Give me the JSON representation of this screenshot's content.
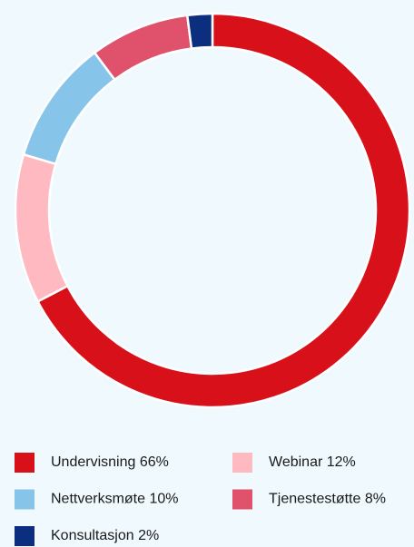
{
  "chart_data": {
    "type": "donut",
    "categories": [
      "Undervisning",
      "Webinar",
      "Nettverksmøte",
      "Tjenestestøtte",
      "Konsultasjon"
    ],
    "values": [
      66,
      12,
      10,
      8,
      2
    ],
    "value_labels": [
      "66%",
      "12%",
      "10%",
      "8%",
      "2%"
    ],
    "colors": [
      "#d7101a",
      "#ffb9c0",
      "#86c5e9",
      "#e0516b",
      "#0b2e7f"
    ]
  }
}
